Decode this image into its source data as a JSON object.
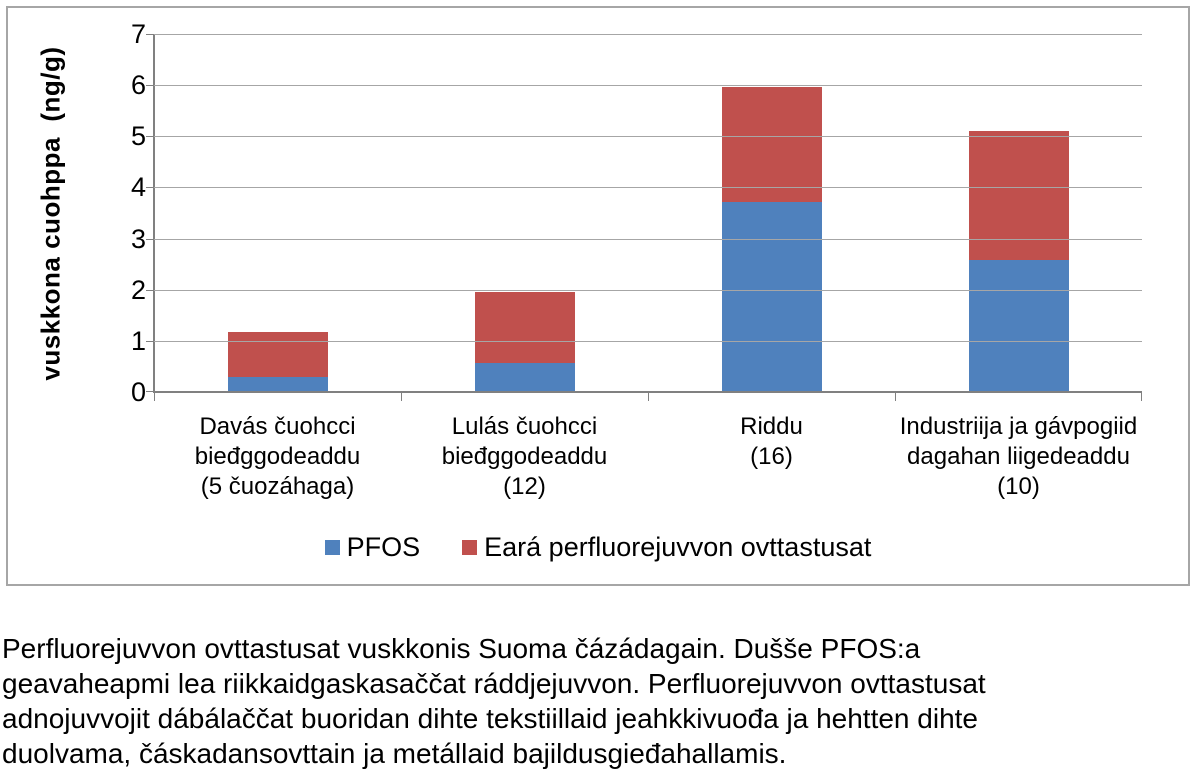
{
  "figure": {
    "caption": "Perfluorejuvvon ovttastusat vuskkonis Suoma čázádagain. Dušše PFOS:a\ngeavaheapmi lea riikkaidgaskasaččat ráddjejuvvon. Perfluorejuvvon ovttastusat\nadnojuvvojit dábálaččat buoridan dihte tekstiillaid jeahkkivuođa ja hehtten dihte\nduolvama, čáskadansovttain ja metállaid bajildusgieđahallamis."
  },
  "chart_data": {
    "type": "bar",
    "stacked": true,
    "title": "",
    "xlabel": "",
    "ylabel": "vuskkona cuohppa  (ng/g)",
    "ylim": [
      0,
      7
    ],
    "ytick_step": 1,
    "grid": true,
    "legend_position": "bottom",
    "categories": [
      "Davás čuohcci\nbieđggodeaddu\n(5 čuozáhaga)",
      "Lulás čuohcci\nbieđggodeaddu\n(12)",
      "Riddu\n(16)",
      "Industriija ja gávpogiid\ndagahan liigedeaddu\n(10)"
    ],
    "series": [
      {
        "name": "PFOS",
        "color": "#4F81BD",
        "values": [
          0.28,
          0.54,
          3.7,
          2.57
        ]
      },
      {
        "name": "Eará perfluorejuvvon ovttastusat",
        "color": "#C0504D",
        "values": [
          0.88,
          1.4,
          2.25,
          2.52
        ]
      }
    ],
    "stack_totals": [
      1.16,
      1.94,
      5.95,
      5.09
    ]
  },
  "colors": {
    "axis": "#808080",
    "gridline": "#A6A6A6",
    "figure_border": "#A6A6A6",
    "text": "#000000",
    "background": "#FFFFFF"
  }
}
